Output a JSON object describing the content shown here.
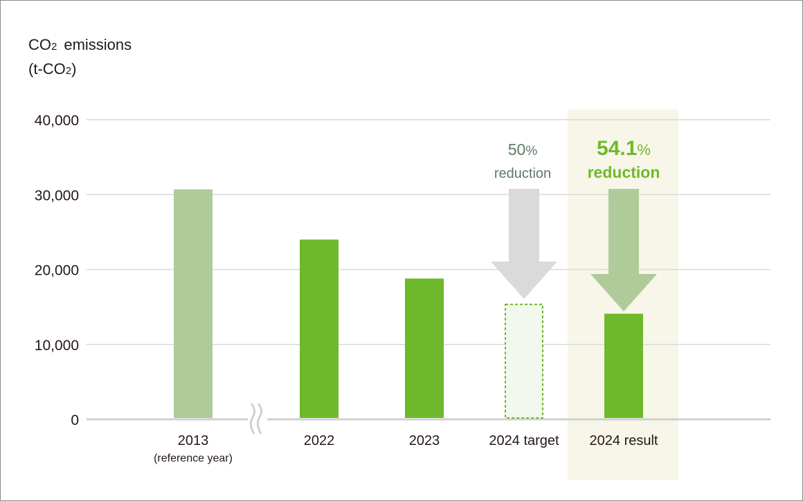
{
  "chart_data": {
    "type": "bar",
    "ylabel_line1_prefix": "CO",
    "ylabel_line1_sub": "2",
    "ylabel_line1_suffix": "emissions",
    "ylabel_line2_prefix": "(t-CO",
    "ylabel_line2_sub": "2",
    "ylabel_line2_suffix": ")",
    "ylim": [
      0,
      40000
    ],
    "yticks": [
      {
        "value": 0,
        "label": "0"
      },
      {
        "value": 10000,
        "label": "10,000"
      },
      {
        "value": 20000,
        "label": "20,000"
      },
      {
        "value": 30000,
        "label": "30,000"
      },
      {
        "value": 40000,
        "label": "40,000"
      }
    ],
    "bars": [
      {
        "label": "2013",
        "sublabel": "(reference year)",
        "value": 30700,
        "style": "reference"
      },
      {
        "label": "2022",
        "value": 24000,
        "style": "actual"
      },
      {
        "label": "2023",
        "value": 18800,
        "style": "actual"
      },
      {
        "label": "2024 target",
        "value": 15350,
        "style": "target"
      },
      {
        "label": "2024 result",
        "value": 14100,
        "style": "actual"
      }
    ],
    "annotations": {
      "target_pct": "50",
      "target_unit": "%",
      "target_text": "reduction",
      "result_pct": "54.1",
      "result_unit": "%",
      "result_text": "reduction"
    },
    "colors": {
      "actual": "#6eb92b",
      "reference": "#aecb99",
      "target_fill": "#f3f8ee",
      "target_border": "#6eb92b",
      "grey_arrow": "#dadada",
      "green_arrow": "#aecb99",
      "highlight_bg": "#f8f6e8",
      "grid": "#d9d9d9",
      "baseline": "#d0d0d0",
      "target_text": "#5d7a68",
      "result_text": "#6eb92b"
    }
  }
}
